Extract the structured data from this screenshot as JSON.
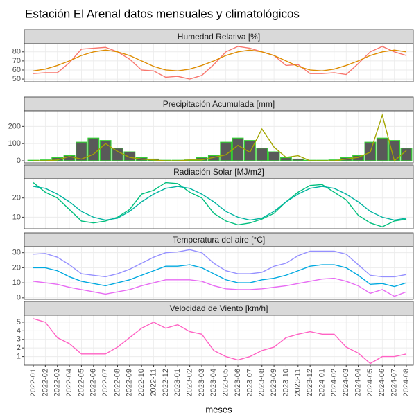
{
  "title": "Estación El Arenal datos mensuales y climatológicos",
  "chart_data": [
    {
      "type": "line",
      "title": "Humedad Relativa [%]",
      "ylim": [
        47,
        89
      ],
      "yticks": [
        50,
        60,
        70,
        80
      ],
      "series": [
        {
          "color": "#F8766D",
          "values": [
            56,
            57,
            57,
            68,
            83,
            84,
            85,
            80,
            72,
            60,
            59,
            52,
            53,
            50,
            54,
            66,
            80,
            86,
            84,
            80,
            76,
            65,
            66,
            56,
            56,
            57,
            55,
            67,
            80,
            86,
            80,
            76
          ]
        },
        {
          "color": "#DE8C00",
          "values": [
            59,
            61,
            65,
            70,
            76,
            80,
            82,
            80,
            76,
            70,
            64,
            60,
            59,
            61,
            65,
            70,
            76,
            80,
            82,
            80,
            76,
            70,
            64,
            60,
            59,
            61,
            65,
            70,
            76,
            80,
            82,
            80
          ]
        }
      ]
    },
    {
      "type": "bar",
      "title": "Precipitación Acumulada [mm]",
      "ylim": [
        -12,
        290
      ],
      "yticks": [
        0,
        100,
        200
      ],
      "series": [
        {
          "type": "bar",
          "color": "#595959",
          "stroke": "#33CC33",
          "values": [
            3,
            5,
            18,
            30,
            108,
            132,
            118,
            74,
            52,
            18,
            10,
            3,
            3,
            5,
            18,
            30,
            108,
            132,
            118,
            74,
            52,
            18,
            10,
            3,
            3,
            5,
            18,
            30,
            108,
            132,
            118,
            74
          ]
        },
        {
          "type": "line",
          "color": "#A3A500",
          "values": [
            0,
            0,
            5,
            25,
            10,
            38,
            100,
            55,
            20,
            10,
            5,
            0,
            0,
            5,
            5,
            20,
            35,
            90,
            50,
            185,
            80,
            20,
            30,
            0,
            0,
            0,
            10,
            20,
            50,
            265,
            0,
            60
          ]
        }
      ]
    },
    {
      "type": "line",
      "title": "Radiación Solar [MJ/m2]",
      "ylim": [
        4,
        30
      ],
      "yticks": [
        10,
        20
      ],
      "series": [
        {
          "color": "#00BF7D",
          "values": [
            28,
            23,
            20,
            14,
            8,
            7,
            8,
            10,
            14,
            22,
            24,
            28,
            27.5,
            23,
            20,
            12,
            8,
            6,
            7,
            9,
            12,
            18,
            23,
            26.5,
            27,
            23,
            19,
            11,
            7,
            5,
            8,
            9
          ]
        },
        {
          "color": "#00B4A0",
          "values": [
            26,
            25,
            22,
            18,
            13,
            10,
            8.5,
            9.5,
            13,
            18,
            22,
            25,
            26,
            25,
            22,
            18,
            13,
            10,
            8.5,
            9.5,
            13,
            18,
            22,
            25,
            26,
            25,
            22,
            18,
            13,
            10,
            8.5,
            9.5
          ]
        }
      ]
    },
    {
      "type": "line",
      "title": "Temperatura del aire [°C]",
      "ylim": [
        -1,
        34
      ],
      "yticks": [
        0,
        10,
        20,
        30
      ],
      "series": [
        {
          "color": "#9590FF",
          "values": [
            29,
            29.5,
            27,
            22,
            16,
            15,
            14,
            16,
            19,
            23,
            27,
            30,
            30.5,
            32,
            30,
            23,
            18,
            16,
            16,
            17,
            21,
            23,
            28,
            31,
            31,
            31,
            29,
            22,
            15,
            14,
            14,
            15.5
          ]
        },
        {
          "color": "#00A9E0",
          "values": [
            20,
            20,
            18,
            14,
            11,
            9.5,
            8,
            10,
            12,
            15,
            18,
            21,
            21,
            22,
            20,
            16,
            12,
            10,
            10,
            12,
            13,
            15,
            18,
            21,
            22,
            22,
            20,
            15,
            9,
            9.5,
            7.5,
            10
          ]
        },
        {
          "color": "#E76BF3",
          "values": [
            11,
            10,
            9,
            7,
            5.5,
            4,
            2.5,
            4,
            5.5,
            8,
            10,
            12,
            12,
            12,
            11,
            8,
            6,
            5.5,
            5.5,
            6,
            7,
            8,
            9.5,
            11,
            12.5,
            13,
            11,
            8,
            3,
            5.5,
            1,
            4
          ]
        }
      ]
    },
    {
      "type": "line",
      "title": "Velocidad de Viento [km/h]",
      "ylim": [
        0,
        5.8
      ],
      "yticks": [
        1,
        2,
        3,
        4,
        5
      ],
      "xlabel": "meses",
      "categories": [
        "2022-01",
        "2022-02",
        "2022-03",
        "2022-04",
        "2022-05",
        "2022-06",
        "2022-07",
        "2022-08",
        "2022-09",
        "2022-10",
        "2022-11",
        "2022-12",
        "2023-01",
        "2023-02",
        "2023-03",
        "2023-04",
        "2023-05",
        "2023-06",
        "2023-07",
        "2023-08",
        "2023-09",
        "2023-10",
        "2023-11",
        "2023-12",
        "2024-01",
        "2024-02",
        "2024-03",
        "2024-04",
        "2024-05",
        "2024-06",
        "2024-07",
        "2024-08"
      ],
      "series": [
        {
          "color": "#FF61C3",
          "values": [
            5.4,
            5.0,
            3.2,
            2.5,
            1.3,
            1.3,
            1.3,
            2.1,
            3.2,
            4.3,
            5.0,
            4.3,
            4.7,
            3.9,
            3.6,
            1.7,
            1.0,
            0.6,
            1.0,
            1.7,
            2.1,
            3.2,
            3.6,
            3.9,
            3.6,
            3.6,
            2.1,
            1.4,
            0.2,
            1.0,
            1.0,
            1.3
          ]
        }
      ]
    }
  ]
}
